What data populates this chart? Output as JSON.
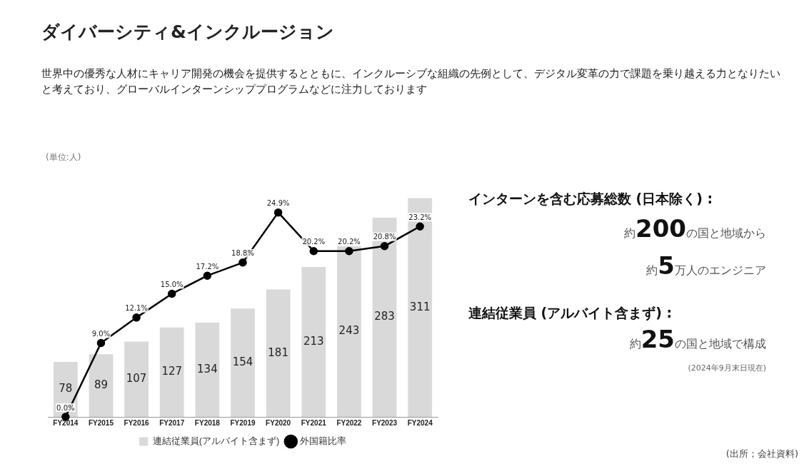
{
  "chart_data": {
    "type": "bar",
    "title": "ダイバーシティ&インクルージョン",
    "subtitle": "世界中の優秀な人材にキャリア開発の機会を提供するとともに、インクルーシブな組織の先例として、デジタル変革の力で課題を乗り越える力となりたいと考えており、グローバルインターンシッププログラムなどに注力しております",
    "categories": [
      "FY2014",
      "FY2015",
      "FY2016",
      "FY2017",
      "FY2018",
      "FY2019",
      "FY2020",
      "FY2021",
      "FY2022",
      "FY2023",
      "FY2024"
    ],
    "series": [
      {
        "name": "連結従業員(アルバイト含まず)",
        "color": "#d9d9d9",
        "values": [
          78,
          89,
          107,
          127,
          134,
          154,
          181,
          213,
          243,
          283,
          311
        ],
        "value_labels": [
          "78",
          "89",
          "107",
          "127",
          "134",
          "154",
          "181",
          "213",
          "243",
          "283",
          "311"
        ]
      },
      {
        "name": "外国籍比率",
        "type": "line",
        "axis": "y2",
        "color": "#000000",
        "values": [
          0.0,
          9.0,
          12.1,
          15.0,
          17.2,
          18.8,
          24.9,
          20.2,
          20.2,
          20.8,
          23.2
        ],
        "value_labels": [
          "0.0%",
          "9.0%",
          "12.1%",
          "15.0%",
          "17.2%",
          "18.8%",
          "24.9%",
          "20.2%",
          "20.2%",
          "20.8%",
          "23.2%"
        ]
      }
    ],
    "annotations": [
      "(単位:人)",
      "インターンを含む応募総数 (日本除く) :",
      "約200の国と地域から",
      "約5万人のエンジニア",
      "連結従業員 (アルバイト含まず) :",
      "約25の国と地域で構成",
      "(2024年9月末日現在)",
      "(出所；会社資料)"
    ],
    "legend": "bottom",
    "grid": false,
    "marker": "circle",
    "line_style": "solid",
    "tick_labels": "x"
  }
}
